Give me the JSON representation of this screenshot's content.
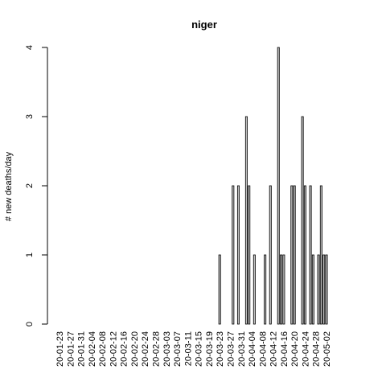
{
  "chart_data": {
    "type": "bar",
    "title": "niger",
    "xlabel": "",
    "ylabel": "# new deaths/day",
    "ylim": [
      0,
      4
    ],
    "yticks": [
      "0",
      "1",
      "2",
      "3",
      "4"
    ],
    "x_tick_labels": [
      "20-01-23",
      "20-01-27",
      "20-01-31",
      "20-02-04",
      "20-02-08",
      "20-02-12",
      "20-02-16",
      "20-02-20",
      "20-02-24",
      "20-02-28",
      "20-03-03",
      "20-03-07",
      "20-03-11",
      "20-03-15",
      "20-03-19",
      "20-03-23",
      "20-03-27",
      "20-03-31",
      "20-04-04",
      "20-04-08",
      "20-04-12",
      "20-04-16",
      "20-04-20",
      "20-04-24",
      "20-04-28",
      "20-05-02"
    ],
    "start_date": "2020-01-23",
    "values": [
      0,
      0,
      0,
      0,
      0,
      0,
      0,
      0,
      0,
      0,
      0,
      0,
      0,
      0,
      0,
      0,
      0,
      0,
      0,
      0,
      0,
      0,
      0,
      0,
      0,
      0,
      0,
      0,
      0,
      0,
      0,
      0,
      0,
      0,
      0,
      0,
      0,
      0,
      0,
      0,
      0,
      0,
      0,
      0,
      0,
      0,
      0,
      0,
      0,
      0,
      0,
      0,
      0,
      0,
      0,
      0,
      0,
      0,
      0,
      0,
      1,
      0,
      0,
      0,
      0,
      2,
      0,
      2,
      0,
      0,
      3,
      2,
      0,
      1,
      0,
      0,
      0,
      1,
      0,
      2,
      0,
      0,
      4,
      1,
      1,
      0,
      0,
      2,
      2,
      0,
      0,
      3,
      2,
      0,
      2,
      1,
      0,
      1,
      2,
      1,
      1
    ]
  }
}
